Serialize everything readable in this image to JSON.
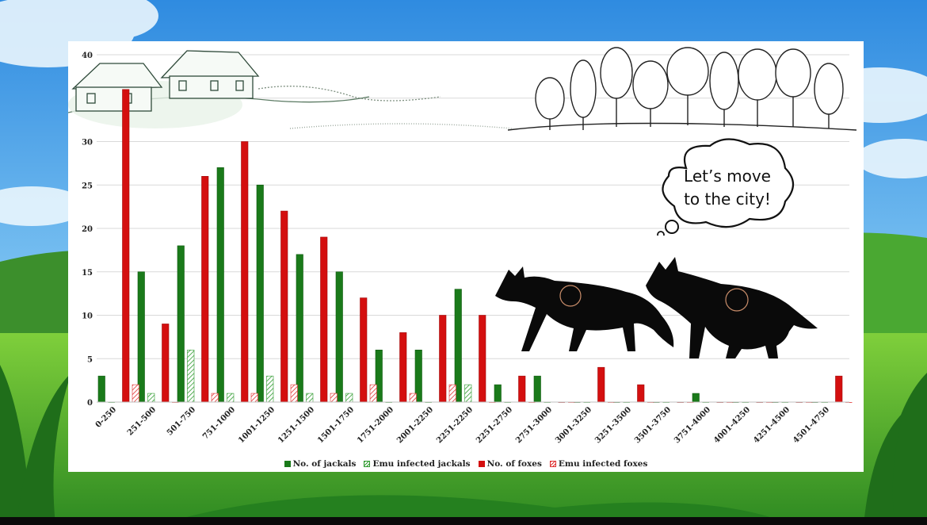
{
  "chart_data": {
    "type": "bar",
    "title": "",
    "xlabel": "",
    "ylabel": "",
    "ylim": [
      0,
      40
    ],
    "yticks": [
      "0",
      "5",
      "10",
      "15",
      "20",
      "25",
      "30",
      "35",
      "40"
    ],
    "grid": true,
    "legend_position": "bottom",
    "categories": [
      "0-250",
      "251-500",
      "501-750",
      "751-1000",
      "1001-1250",
      "1251-1500",
      "1501-1750",
      "1751-2000",
      "2001-2250",
      "2251-2250",
      "2251-2750",
      "2751-3000",
      "3001-3250",
      "3251-3500",
      "3501-3750",
      "3751-4000",
      "4001-4250",
      "4251-4500",
      "4501-4750"
    ],
    "series": [
      {
        "name": "No. of jackals",
        "color": "#1a7a1a",
        "pattern": "solid",
        "values": [
          3,
          15,
          18,
          27,
          25,
          17,
          15,
          6,
          6,
          13,
          2,
          3,
          0,
          0,
          0,
          1,
          0,
          0,
          0
        ]
      },
      {
        "name": "Emu infected jackals",
        "color": "#2e9a2e",
        "pattern": "hatched",
        "values": [
          0,
          1,
          6,
          1,
          3,
          1,
          1,
          0,
          0,
          2,
          0,
          0,
          0,
          0,
          0,
          0,
          0,
          0,
          0
        ]
      },
      {
        "name": "No. of foxes",
        "color": "#d40f0f",
        "pattern": "solid",
        "values": [
          36,
          9,
          26,
          30,
          22,
          19,
          12,
          8,
          10,
          10,
          3,
          0,
          4,
          2,
          0,
          0,
          0,
          0,
          3
        ]
      },
      {
        "name": "Emu infected foxes",
        "color": "#e03030",
        "pattern": "hatched",
        "values": [
          2,
          0,
          1,
          1,
          2,
          1,
          2,
          1,
          2,
          0,
          0,
          0,
          0,
          0,
          0,
          0,
          0,
          0,
          0
        ]
      }
    ]
  },
  "bubble": {
    "line1": "Let’s move",
    "line2": "to the city!"
  },
  "icons": {
    "houses": "village-houses-illustration",
    "trees": "forest-trees-illustration",
    "foxes": "fox-silhouettes-icon",
    "bubble": "thought-bubble-icon"
  }
}
